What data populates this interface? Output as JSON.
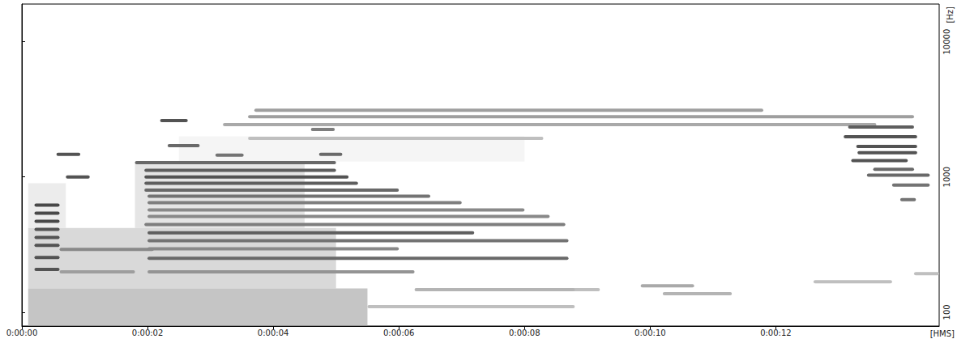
{
  "chart_data": {
    "type": "spectrogram",
    "x_label": "[HMS]",
    "y_label": "[Hz]",
    "log": "y",
    "grid": false,
    "color": "#000000",
    "xlim": [
      0,
      14.6
    ],
    "xticks": [
      {
        "value": 0,
        "label": "0:00:00"
      },
      {
        "value": 2,
        "label": "0:00:02"
      },
      {
        "value": 4,
        "label": "0:00:04"
      },
      {
        "value": 6,
        "label": "0:00:06"
      },
      {
        "value": 8,
        "label": "0:00:08"
      },
      {
        "value": 10,
        "label": "0:00:10"
      },
      {
        "value": 12,
        "label": "0:00:12"
      }
    ],
    "ylim": [
      79,
      19000
    ],
    "yticks": [
      100,
      1000,
      10000
    ],
    "noise": [
      {
        "t0": 0.1,
        "t1": 5.5,
        "f0": 79,
        "f1": 150,
        "level": 0.45
      },
      {
        "t0": 0.1,
        "t1": 5.0,
        "f0": 150,
        "f1": 420,
        "level": 0.3
      },
      {
        "t0": 0.1,
        "t1": 0.7,
        "f0": 420,
        "f1": 900,
        "level": 0.15
      },
      {
        "t0": 1.8,
        "t1": 4.5,
        "f0": 420,
        "f1": 1300,
        "level": 0.2
      },
      {
        "t0": 2.5,
        "t1": 8.0,
        "f0": 1300,
        "f1": 2000,
        "level": 0.08
      }
    ],
    "traces": [
      {
        "t0": 0.55,
        "t1": 0.93,
        "f": 1468,
        "level": 0.8
      },
      {
        "t0": 0.7,
        "t1": 1.08,
        "f": 1000,
        "level": 0.8
      },
      {
        "t0": 0.2,
        "t1": 0.6,
        "f": 620,
        "level": 0.85
      },
      {
        "t0": 0.2,
        "t1": 0.6,
        "f": 540,
        "level": 0.85
      },
      {
        "t0": 0.2,
        "t1": 0.6,
        "f": 470,
        "level": 0.85
      },
      {
        "t0": 0.2,
        "t1": 0.6,
        "f": 410,
        "level": 0.8
      },
      {
        "t0": 0.2,
        "t1": 0.6,
        "f": 357,
        "level": 0.8
      },
      {
        "t0": 0.2,
        "t1": 0.6,
        "f": 312,
        "level": 0.8
      },
      {
        "t0": 0.2,
        "t1": 0.6,
        "f": 254,
        "level": 0.8
      },
      {
        "t0": 0.2,
        "t1": 0.6,
        "f": 207,
        "level": 0.8
      },
      {
        "t0": 0.6,
        "t1": 2.1,
        "f": 291,
        "level": 0.55
      },
      {
        "t0": 0.6,
        "t1": 1.8,
        "f": 199,
        "level": 0.45
      },
      {
        "t0": 2.2,
        "t1": 2.64,
        "f": 2610,
        "level": 0.8
      },
      {
        "t0": 2.32,
        "t1": 2.83,
        "f": 1706,
        "level": 0.7
      },
      {
        "t0": 3.08,
        "t1": 3.53,
        "f": 1448,
        "level": 0.65
      },
      {
        "t0": 4.73,
        "t1": 5.1,
        "f": 1468,
        "level": 0.7
      },
      {
        "t0": 4.6,
        "t1": 4.98,
        "f": 2244,
        "level": 0.6
      },
      {
        "t0": 1.8,
        "t1": 5.0,
        "f": 1279,
        "level": 0.7
      },
      {
        "t0": 1.95,
        "t1": 5.0,
        "f": 1120,
        "level": 0.75
      },
      {
        "t0": 1.95,
        "t1": 5.2,
        "f": 1000,
        "level": 0.8
      },
      {
        "t0": 1.95,
        "t1": 5.35,
        "f": 900,
        "level": 0.75
      },
      {
        "t0": 1.95,
        "t1": 6.0,
        "f": 800,
        "level": 0.7
      },
      {
        "t0": 2.0,
        "t1": 6.5,
        "f": 720,
        "level": 0.65
      },
      {
        "t0": 2.0,
        "t1": 7.0,
        "f": 645,
        "level": 0.6
      },
      {
        "t0": 2.0,
        "t1": 8.0,
        "f": 570,
        "level": 0.55
      },
      {
        "t0": 2.0,
        "t1": 8.4,
        "f": 510,
        "level": 0.55
      },
      {
        "t0": 1.95,
        "t1": 8.65,
        "f": 445,
        "level": 0.6
      },
      {
        "t0": 2.0,
        "t1": 7.2,
        "f": 387,
        "level": 0.75
      },
      {
        "t0": 2.0,
        "t1": 8.7,
        "f": 338,
        "level": 0.65
      },
      {
        "t0": 2.0,
        "t1": 6.0,
        "f": 294,
        "level": 0.55
      },
      {
        "t0": 2.0,
        "t1": 8.7,
        "f": 250,
        "level": 0.7
      },
      {
        "t0": 2.0,
        "t1": 6.25,
        "f": 199,
        "level": 0.5
      },
      {
        "t0": 3.7,
        "t1": 11.8,
        "f": 3120,
        "level": 0.45
      },
      {
        "t0": 3.6,
        "t1": 14.2,
        "f": 2790,
        "level": 0.45
      },
      {
        "t0": 3.2,
        "t1": 13.6,
        "f": 2440,
        "level": 0.4
      },
      {
        "t0": 3.6,
        "t1": 8.3,
        "f": 1930,
        "level": 0.3
      },
      {
        "t0": 13.15,
        "t1": 14.2,
        "f": 2340,
        "level": 0.75
      },
      {
        "t0": 13.08,
        "t1": 14.25,
        "f": 1985,
        "level": 0.8
      },
      {
        "t0": 13.28,
        "t1": 14.25,
        "f": 1680,
        "level": 0.8
      },
      {
        "t0": 13.3,
        "t1": 14.25,
        "f": 1510,
        "level": 0.8
      },
      {
        "t0": 13.2,
        "t1": 14.1,
        "f": 1320,
        "level": 0.8
      },
      {
        "t0": 13.55,
        "t1": 14.2,
        "f": 1140,
        "level": 0.7
      },
      {
        "t0": 13.45,
        "t1": 14.45,
        "f": 1030,
        "level": 0.7
      },
      {
        "t0": 13.85,
        "t1": 14.45,
        "f": 870,
        "level": 0.65
      },
      {
        "t0": 13.98,
        "t1": 14.23,
        "f": 680,
        "level": 0.65
      },
      {
        "t0": 9.85,
        "t1": 10.7,
        "f": 157,
        "level": 0.4
      },
      {
        "t0": 10.2,
        "t1": 11.3,
        "f": 137,
        "level": 0.35
      },
      {
        "t0": 12.6,
        "t1": 13.85,
        "f": 168,
        "level": 0.3
      },
      {
        "t0": 14.2,
        "t1": 14.6,
        "f": 193,
        "level": 0.3
      },
      {
        "t0": 8.65,
        "t1": 9.2,
        "f": 147,
        "level": 0.3
      },
      {
        "t0": 6.25,
        "t1": 8.8,
        "f": 147,
        "level": 0.35
      },
      {
        "t0": 5.5,
        "t1": 8.8,
        "f": 110,
        "level": 0.3
      }
    ]
  }
}
